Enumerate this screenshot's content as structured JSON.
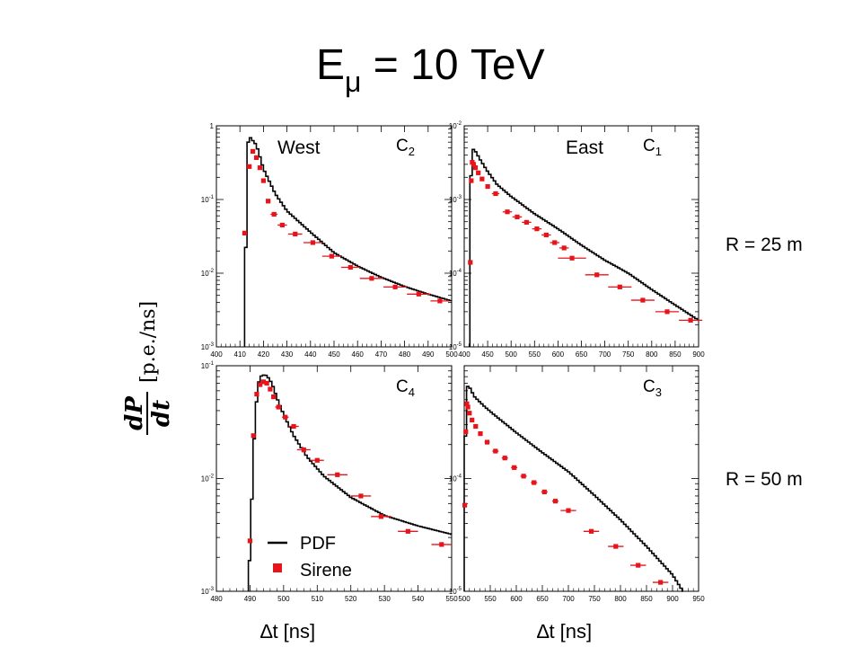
{
  "slide": {
    "title_main": "E",
    "title_sub": "μ",
    "title_rest": " = 10 TeV",
    "row_labels": [
      "R = 25 m",
      "R = 50 m"
    ],
    "ylabel_num": "dP",
    "ylabel_den": "dt",
    "ylabel_unit": "[p.e./ns]",
    "xlabels": [
      "∆t [ns]",
      "∆t [ns]"
    ],
    "legend": [
      {
        "label": "PDF",
        "kind": "line"
      },
      {
        "label": "Sirene",
        "kind": "marker"
      }
    ]
  },
  "colors": {
    "pdf": "#000000",
    "sirene": "#e8141b",
    "frame": "#000000"
  },
  "chart_data": [
    {
      "type": "line",
      "panel": "top-left",
      "side_label": "West",
      "tag_main": "C",
      "tag_sub": "2",
      "xlim": [
        400,
        500
      ],
      "ylim": [
        0.001,
        1
      ],
      "yscale": "log",
      "xticks": [
        400,
        410,
        420,
        430,
        440,
        450,
        460,
        470,
        480,
        490,
        500
      ],
      "yticks": [
        {
          "v": 1,
          "l": "1"
        },
        {
          "v": 0.1,
          "l": "10-1"
        },
        {
          "v": 0.01,
          "l": "10-2"
        },
        {
          "v": 0.001,
          "l": "10-3"
        }
      ],
      "series": [
        {
          "name": "PDF",
          "x": [
            412,
            413,
            414,
            417,
            420,
            425,
            430,
            440,
            450,
            460,
            470,
            480,
            490,
            500
          ],
          "y": [
            0.001,
            0.5,
            0.72,
            0.55,
            0.26,
            0.12,
            0.07,
            0.036,
            0.019,
            0.0125,
            0.0088,
            0.0066,
            0.0052,
            0.0042
          ]
        },
        {
          "name": "Sirene",
          "x": [
            412,
            414,
            415.5,
            417,
            418.5,
            420,
            422,
            424.5,
            428,
            433.5,
            441,
            449,
            457,
            466,
            476,
            486,
            495
          ],
          "xerr": [
            0.5,
            0.5,
            0.5,
            0.5,
            0.5,
            0.5,
            1,
            1.5,
            2,
            3,
            4,
            4,
            4,
            5,
            5,
            5,
            4
          ],
          "y": [
            0.035,
            0.28,
            0.45,
            0.37,
            0.27,
            0.18,
            0.095,
            0.063,
            0.045,
            0.034,
            0.026,
            0.017,
            0.012,
            0.0085,
            0.0065,
            0.0052,
            0.0042
          ]
        }
      ]
    },
    {
      "type": "line",
      "panel": "top-right",
      "side_label": "East",
      "tag_main": "C",
      "tag_sub": "1",
      "xlim": [
        400,
        900
      ],
      "ylim": [
        1e-05,
        0.01
      ],
      "yscale": "log",
      "xticks": [
        400,
        450,
        500,
        550,
        600,
        650,
        700,
        750,
        800,
        850,
        900
      ],
      "yticks": [
        {
          "v": 0.01,
          "l": "10-2"
        },
        {
          "v": 0.001,
          "l": "10-3"
        },
        {
          "v": 0.0001,
          "l": "10-4"
        },
        {
          "v": 1e-05,
          "l": "10-5"
        }
      ],
      "series": [
        {
          "name": "PDF",
          "x": [
            412,
            414,
            416,
            420,
            425,
            435,
            450,
            470,
            500,
            550,
            600,
            650,
            700,
            750,
            800,
            850,
            900
          ],
          "y": [
            1e-05,
            0.0017,
            0.004,
            0.0049,
            0.0044,
            0.0034,
            0.0024,
            0.0016,
            0.0011,
            0.00064,
            0.0004,
            0.00024,
            0.00015,
            0.0001,
            6e-05,
            3.7e-05,
            2.3e-05
          ]
        },
        {
          "name": "Sirene",
          "x": [
            413,
            415,
            417,
            420,
            424,
            430,
            438,
            450,
            467,
            492,
            513,
            533,
            555,
            575,
            593,
            613,
            630,
            683,
            732,
            781,
            833,
            883
          ],
          "xerr": [
            1,
            1,
            1,
            1.5,
            1.5,
            2.5,
            3,
            5,
            8,
            10,
            10,
            10,
            10,
            10,
            10,
            10,
            30,
            25,
            25,
            25,
            25,
            25
          ],
          "y": [
            0.00014,
            0.0018,
            0.0032,
            0.003,
            0.0027,
            0.0023,
            0.0019,
            0.0015,
            0.0012,
            0.00068,
            0.00058,
            0.00049,
            0.0004,
            0.00033,
            0.00026,
            0.00022,
            0.00016,
            9.5e-05,
            6.5e-05,
            4.3e-05,
            3e-05,
            2.3e-05
          ]
        }
      ]
    },
    {
      "type": "line",
      "panel": "bottom-left",
      "tag_main": "C",
      "tag_sub": "4",
      "xlim": [
        480,
        550
      ],
      "ylim": [
        0.001,
        0.1
      ],
      "yscale": "log",
      "xticks": [
        480,
        490,
        500,
        510,
        520,
        530,
        540,
        550
      ],
      "yticks": [
        {
          "v": 0.1,
          "l": "10-1"
        },
        {
          "v": 0.01,
          "l": "10-2"
        },
        {
          "v": 0.001,
          "l": "10-3"
        }
      ],
      "series": [
        {
          "name": "PDF",
          "x": [
            489.5,
            490.5,
            491.5,
            492.5,
            493.5,
            495,
            496.5,
            498,
            500,
            503,
            507,
            512,
            520,
            530,
            540,
            550
          ],
          "y": [
            0.001,
            0.006,
            0.035,
            0.07,
            0.083,
            0.082,
            0.07,
            0.052,
            0.037,
            0.024,
            0.0155,
            0.0105,
            0.0068,
            0.0047,
            0.0038,
            0.0032
          ]
        },
        {
          "name": "Sirene",
          "x": [
            490,
            491,
            492,
            493,
            494,
            495,
            496,
            497,
            498.5,
            500.5,
            503,
            506,
            510,
            516,
            523,
            529,
            537,
            547
          ],
          "xerr": [
            0.5,
            0.5,
            0.5,
            0.5,
            0.5,
            0.5,
            0.5,
            0.5,
            1,
            1,
            1.5,
            2,
            2,
            3,
            3,
            3,
            3,
            3
          ],
          "y": [
            0.0028,
            0.024,
            0.056,
            0.068,
            0.072,
            0.07,
            0.062,
            0.053,
            0.043,
            0.035,
            0.029,
            0.018,
            0.0145,
            0.0108,
            0.007,
            0.0046,
            0.0034,
            0.0026
          ]
        }
      ]
    },
    {
      "type": "line",
      "panel": "bottom-right",
      "tag_main": "C",
      "tag_sub": "3",
      "xlim": [
        500,
        950
      ],
      "ylim": [
        1e-05,
        0.001
      ],
      "yscale": "log",
      "xticks": [
        500,
        550,
        600,
        650,
        700,
        750,
        800,
        850,
        900,
        950
      ],
      "yticks": [
        {
          "v": 0.0001,
          "l": "10-4"
        },
        {
          "v": 1e-05,
          "l": "10-5"
        }
      ],
      "series": [
        {
          "name": "PDF",
          "x": [
            500,
            501,
            503,
            505,
            508,
            512,
            520,
            540,
            560,
            600,
            650,
            700,
            750,
            800,
            850,
            900,
            920
          ],
          "y": [
            1e-05,
            0.0001,
            0.0004,
            0.00062,
            0.00068,
            0.00062,
            0.00053,
            0.00043,
            0.00036,
            0.000255,
            0.00017,
            0.000115,
            7.1e-05,
            4.3e-05,
            2.5e-05,
            1.4e-05,
            1e-05
          ]
        },
        {
          "name": "Sirene",
          "x": [
            501,
            503,
            505,
            507,
            510,
            515,
            522,
            531,
            544,
            560,
            578,
            596,
            614,
            634,
            654,
            675,
            700,
            744,
            791,
            834,
            877
          ],
          "xerr": [
            0.5,
            0.5,
            0.5,
            1,
            1,
            2,
            3,
            4,
            5,
            6,
            6,
            6,
            6,
            6,
            6,
            6,
            15,
            15,
            15,
            15,
            15
          ],
          "y": [
            5.8e-05,
            0.00026,
            0.00046,
            0.00043,
            0.00038,
            0.00033,
            0.00029,
            0.00025,
            0.00021,
            0.000175,
            0.000152,
            0.000125,
            0.000105,
            9.2e-05,
            7.6e-05,
            6.3e-05,
            5.2e-05,
            3.4e-05,
            2.5e-05,
            1.7e-05,
            1.2e-05
          ]
        }
      ]
    }
  ]
}
